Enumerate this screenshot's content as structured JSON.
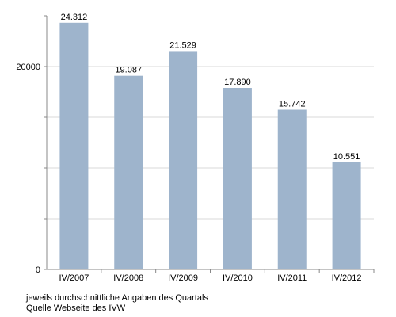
{
  "chart_data": {
    "type": "bar",
    "categories": [
      "IV/2007",
      "IV/2008",
      "IV/2009",
      "IV/2010",
      "IV/2011",
      "IV/2012"
    ],
    "values": [
      24312,
      19087,
      21529,
      17890,
      15742,
      10551
    ],
    "value_labels": [
      "24.312",
      "19.087",
      "21.529",
      "17.890",
      "15.742",
      "10.551"
    ],
    "ylim": [
      0,
      25000
    ],
    "yticks": [
      0,
      5000,
      10000,
      15000,
      20000
    ],
    "ytick_labels": [
      "0",
      "",
      "",
      "",
      "20000"
    ],
    "grid": true,
    "bar_color": "#9eb4cc",
    "grid_color": "#d8d8d8",
    "axis_color": "#888888"
  },
  "footnotes": {
    "line1": "jeweils durchschnittliche Angaben des Quartals",
    "line2": "Quelle Webseite des IVW"
  }
}
